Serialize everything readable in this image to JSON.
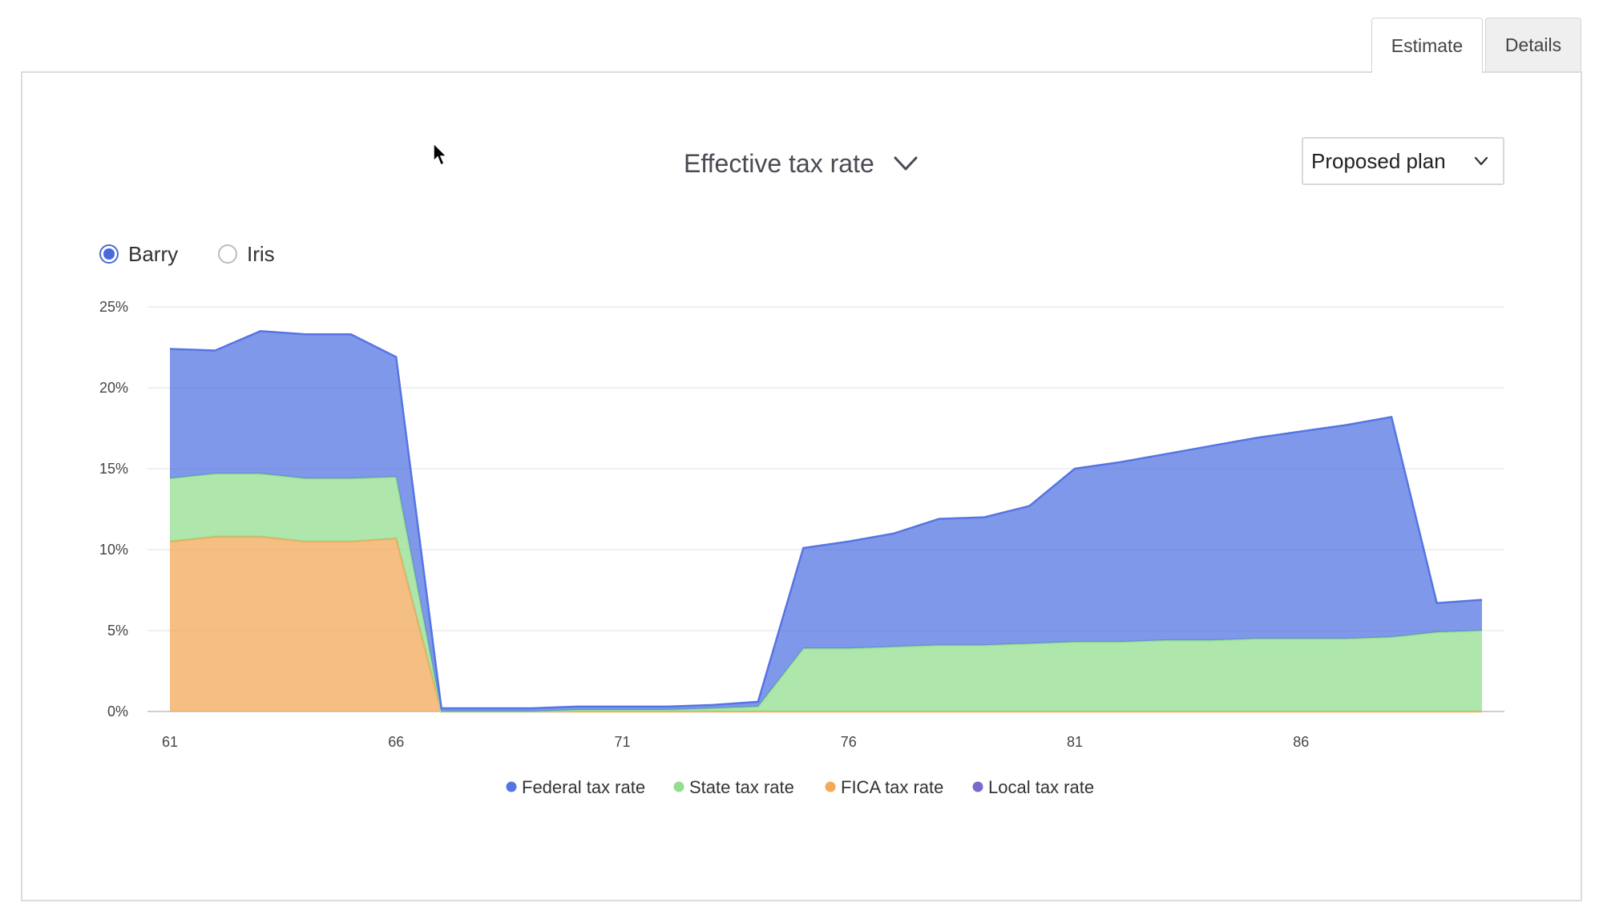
{
  "tabs": [
    {
      "label": "Estimate",
      "active": true
    },
    {
      "label": "Details",
      "active": false
    }
  ],
  "chart_selector": {
    "label": "Effective tax rate",
    "icon": "chevron-down-icon"
  },
  "plan_selector": {
    "value": "Proposed plan",
    "icon": "chevron-down-icon"
  },
  "people": [
    {
      "label": "Barry",
      "selected": true
    },
    {
      "label": "Iris",
      "selected": false
    }
  ],
  "chart_data": {
    "type": "area",
    "stacked": true,
    "title": "Effective tax rate",
    "xlabel": "",
    "ylabel": "",
    "x": [
      61,
      62,
      63,
      64,
      65,
      66,
      67,
      68,
      69,
      70,
      71,
      72,
      73,
      74,
      75,
      76,
      77,
      78,
      79,
      80,
      81,
      82,
      83,
      84,
      85,
      86,
      87,
      88,
      89,
      90
    ],
    "x_ticks": [
      "61",
      "66",
      "71",
      "76",
      "81",
      "86"
    ],
    "y_ticks": [
      "0%",
      "5%",
      "10%",
      "15%",
      "20%",
      "25%"
    ],
    "ylim": [
      0,
      25
    ],
    "grid": true,
    "legend_position": "bottom",
    "series": [
      {
        "name": "Local tax rate",
        "color": "#7b68cc",
        "values": [
          0,
          0,
          0,
          0,
          0,
          0,
          0,
          0,
          0,
          0,
          0,
          0,
          0,
          0,
          0,
          0,
          0,
          0,
          0,
          0,
          0,
          0,
          0,
          0,
          0,
          0,
          0,
          0,
          0,
          0
        ]
      },
      {
        "name": "FICA tax rate",
        "color": "#f2a95a",
        "values": [
          10.5,
          10.8,
          10.8,
          10.5,
          10.5,
          10.7,
          0,
          0,
          0,
          0,
          0,
          0,
          0,
          0,
          0,
          0,
          0,
          0,
          0,
          0,
          0,
          0,
          0,
          0,
          0,
          0,
          0,
          0,
          0,
          0
        ]
      },
      {
        "name": "State tax rate",
        "color": "#93dd8f",
        "values": [
          3.9,
          3.9,
          3.9,
          3.9,
          3.9,
          3.8,
          0,
          0,
          0,
          0.1,
          0.1,
          0.1,
          0.2,
          0.3,
          3.9,
          3.9,
          4.0,
          4.1,
          4.1,
          4.2,
          4.3,
          4.3,
          4.4,
          4.4,
          4.5,
          4.5,
          4.5,
          4.6,
          4.9,
          5.0
        ]
      },
      {
        "name": "Federal tax rate",
        "color": "#5575e3",
        "values": [
          8.0,
          7.6,
          8.8,
          8.9,
          8.9,
          7.4,
          0.2,
          0.2,
          0.2,
          0.2,
          0.2,
          0.2,
          0.2,
          0.3,
          6.2,
          6.6,
          7.0,
          7.8,
          7.9,
          8.5,
          10.7,
          11.1,
          11.5,
          12.0,
          12.4,
          12.8,
          13.2,
          13.6,
          1.8,
          1.9
        ]
      }
    ],
    "legend": [
      {
        "name": "Federal tax rate",
        "color": "#5575e3"
      },
      {
        "name": "State tax rate",
        "color": "#93dd8f"
      },
      {
        "name": "FICA tax rate",
        "color": "#f2a95a"
      },
      {
        "name": "Local tax rate",
        "color": "#7b68cc"
      }
    ]
  }
}
